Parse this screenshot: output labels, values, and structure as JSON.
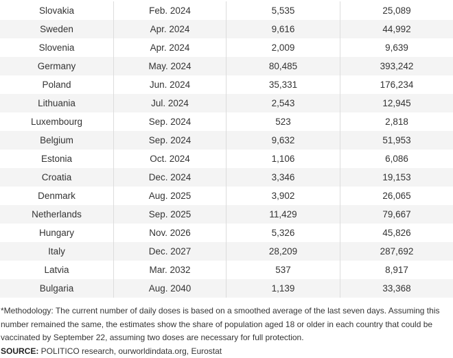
{
  "table": {
    "rows": [
      {
        "country": "Slovakia",
        "date": "Feb. 2024",
        "daily": "5,535",
        "needed": "25,089"
      },
      {
        "country": "Sweden",
        "date": "Apr. 2024",
        "daily": "9,616",
        "needed": "44,992"
      },
      {
        "country": "Slovenia",
        "date": "Apr. 2024",
        "daily": "2,009",
        "needed": "9,639"
      },
      {
        "country": "Germany",
        "date": "May. 2024",
        "daily": "80,485",
        "needed": "393,242"
      },
      {
        "country": "Poland",
        "date": "Jun. 2024",
        "daily": "35,331",
        "needed": "176,234"
      },
      {
        "country": "Lithuania",
        "date": "Jul. 2024",
        "daily": "2,543",
        "needed": "12,945"
      },
      {
        "country": "Luxembourg",
        "date": "Sep. 2024",
        "daily": "523",
        "needed": "2,818"
      },
      {
        "country": "Belgium",
        "date": "Sep. 2024",
        "daily": "9,632",
        "needed": "51,953"
      },
      {
        "country": "Estonia",
        "date": "Oct. 2024",
        "daily": "1,106",
        "needed": "6,086"
      },
      {
        "country": "Croatia",
        "date": "Dec. 2024",
        "daily": "3,346",
        "needed": "19,153"
      },
      {
        "country": "Denmark",
        "date": "Aug. 2025",
        "daily": "3,902",
        "needed": "26,065"
      },
      {
        "country": "Netherlands",
        "date": "Sep. 2025",
        "daily": "11,429",
        "needed": "79,667"
      },
      {
        "country": "Hungary",
        "date": "Nov. 2026",
        "daily": "5,326",
        "needed": "45,826"
      },
      {
        "country": "Italy",
        "date": "Dec. 2027",
        "daily": "28,209",
        "needed": "287,692"
      },
      {
        "country": "Latvia",
        "date": "Mar. 2032",
        "daily": "537",
        "needed": "8,917"
      },
      {
        "country": "Bulgaria",
        "date": "Aug. 2040",
        "daily": "1,139",
        "needed": "33,368"
      }
    ]
  },
  "footer": {
    "methodology": "*Methodology: The current number of daily doses is based on a smoothed average of the last seven days. Assuming this number remained the same, the estimates show the share of population aged 18 or older in each country that could be vaccinated by September 22, assuming two doses are necessary for full protection.",
    "source_label": "SOURCE:",
    "source_text": " POLITICO research, ourworldindata.org, Eurostat"
  },
  "colors": {
    "row_alt": "#f4f4f4",
    "divider": "#dcdcdc",
    "text": "#333333"
  }
}
